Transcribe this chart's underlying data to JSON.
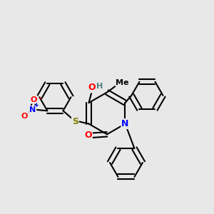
{
  "background_color": "#e8e8e8",
  "bond_color": "#000000",
  "atom_colors": {
    "N": "#0000ff",
    "O": "#ff0000",
    "S": "#808000",
    "H": "#4a8080",
    "C": "#000000"
  },
  "figsize": [
    3.0,
    3.0
  ],
  "dpi": 100
}
